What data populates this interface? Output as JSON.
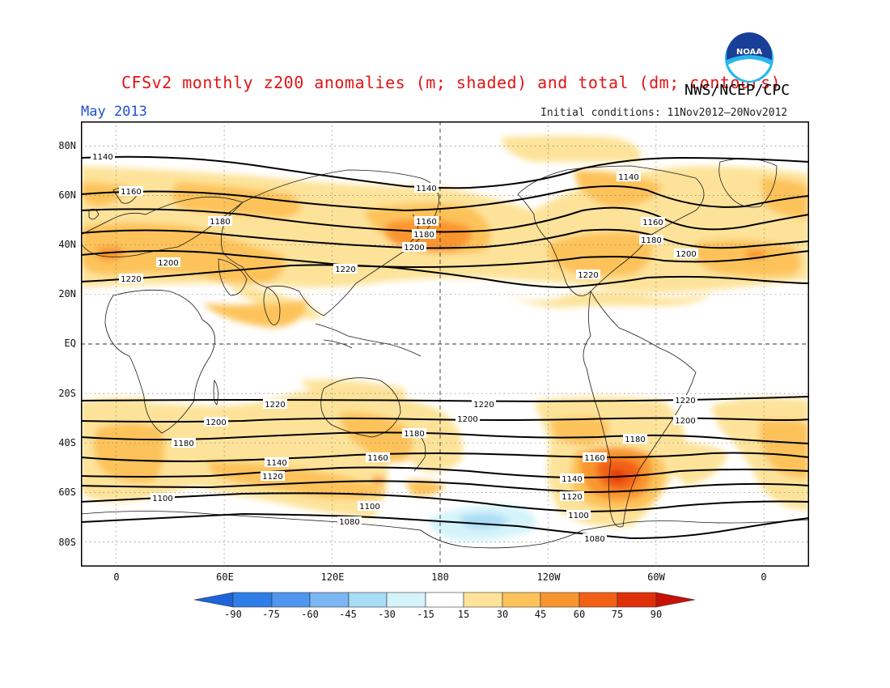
{
  "header": {
    "title": "CFSv2 monthly z200 anomalies (m; shaded) and total (dm; contours)",
    "credit": "NWS/NCEP/CPC",
    "month": "May 2013",
    "initial_conditions": "Initial conditions: 11Nov2012–20Nov2012",
    "logo_text": "NOAA"
  },
  "map": {
    "lat_labels": [
      "80N",
      "60N",
      "40N",
      "20N",
      "EQ",
      "20S",
      "40S",
      "60S",
      "80S"
    ],
    "lon_labels": [
      "0",
      "60E",
      "120E",
      "180",
      "120W",
      "60W",
      "0"
    ],
    "contour_labels": {
      "c1140": "1140",
      "c1160": "1160",
      "c1180": "1180",
      "c1200": "1200",
      "c1220": "1220",
      "c1120": "1120",
      "c1100": "1100",
      "c1080": "1080"
    }
  },
  "colorbar": {
    "labels": [
      "-90",
      "-75",
      "-60",
      "-45",
      "-30",
      "-15",
      "15",
      "30",
      "45",
      "60",
      "75",
      "90"
    ],
    "colors": [
      "#1e64d8",
      "#2f7ee8",
      "#4f96ee",
      "#7cb6f3",
      "#a9dcf5",
      "#d4f4fa",
      "#ffffff",
      "#fde39a",
      "#fdc35a",
      "#f9952e",
      "#f26016",
      "#e0300a",
      "#c81208"
    ]
  }
}
